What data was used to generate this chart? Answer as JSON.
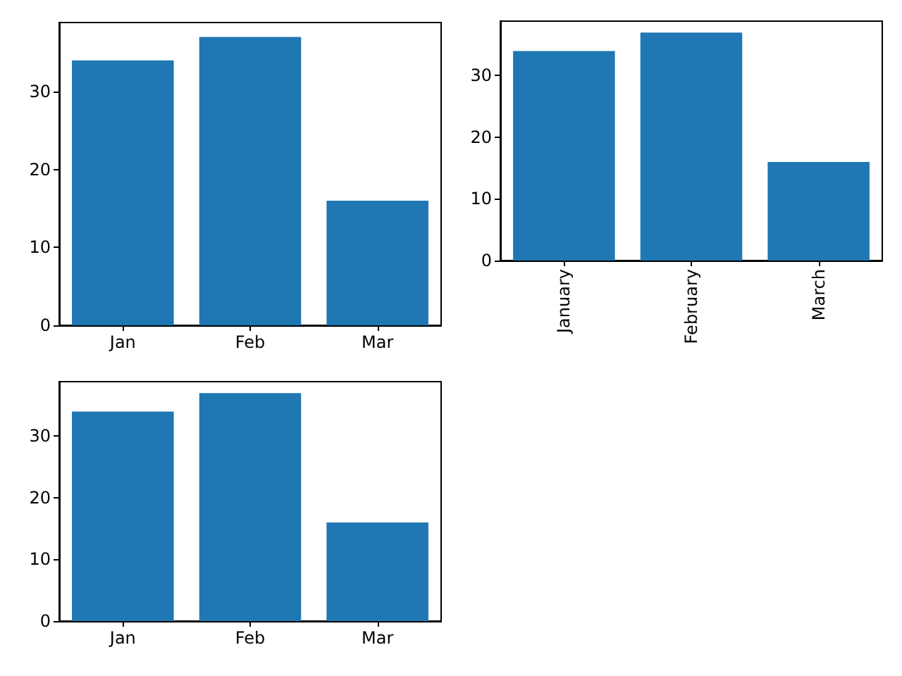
{
  "chart_data": [
    {
      "type": "bar",
      "categories": [
        "Jan",
        "Feb",
        "Mar"
      ],
      "values": [
        34,
        37,
        16
      ],
      "color": "#1f77b4",
      "ylim": [
        0,
        38.85
      ],
      "yticks": [
        0,
        10,
        20,
        30
      ],
      "grid": false
    },
    {
      "type": "bar",
      "categories": [
        "January",
        "February",
        "March"
      ],
      "values": [
        34,
        37,
        16
      ],
      "color": "#1f77b4",
      "ylim": [
        0,
        38.85
      ],
      "yticks": [
        0,
        10,
        20,
        30
      ],
      "grid": false
    },
    {
      "type": "bar",
      "categories": [
        "Jan",
        "Feb",
        "Mar"
      ],
      "values": [
        34,
        37,
        16
      ],
      "color": "#1f77b4",
      "ylim": [
        0,
        38.85
      ],
      "yticks": [
        0,
        10,
        20,
        30
      ],
      "grid": false
    }
  ]
}
